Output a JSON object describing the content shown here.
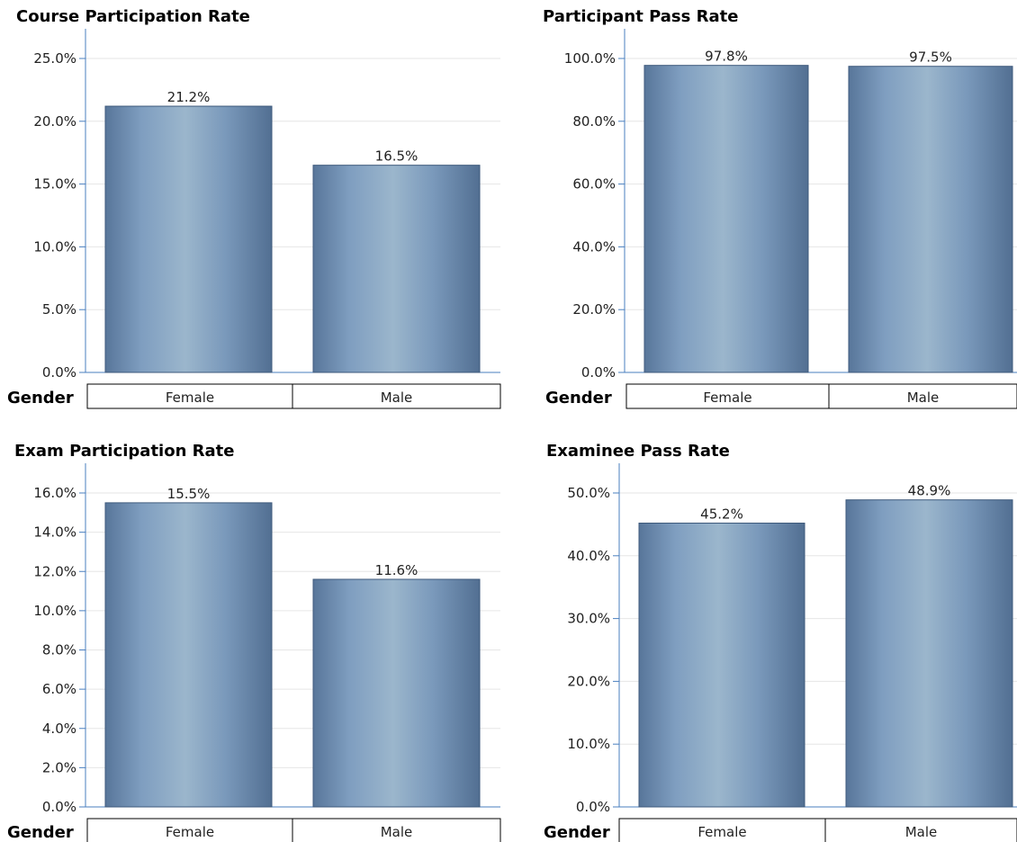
{
  "chart_data": [
    {
      "type": "bar",
      "title": "Course Participation Rate",
      "group_label": "Gender",
      "categories": [
        "Female",
        "Male"
      ],
      "values": [
        21.2,
        16.5
      ],
      "value_labels": [
        "21.2%",
        "16.5%"
      ],
      "ylim": [
        0,
        25
      ],
      "yticks": [
        0,
        5,
        10,
        15,
        20,
        25
      ],
      "ytick_labels": [
        "0.0%",
        "5.0%",
        "10.0%",
        "15.0%",
        "20.0%",
        "25.0%"
      ],
      "grid": true,
      "bar_color": "#7a9bbd",
      "axis_color": "#4a7fbf"
    },
    {
      "type": "bar",
      "title": "Participant Pass Rate",
      "group_label": "Gender",
      "categories": [
        "Female",
        "Male"
      ],
      "values": [
        97.8,
        97.5
      ],
      "value_labels": [
        "97.8%",
        "97.5%"
      ],
      "ylim": [
        0,
        100
      ],
      "yticks": [
        0,
        20,
        40,
        60,
        80,
        100
      ],
      "ytick_labels": [
        "0.0%",
        "20.0%",
        "40.0%",
        "60.0%",
        "80.0%",
        "100.0%"
      ],
      "grid": true,
      "bar_color": "#7a9bbd",
      "axis_color": "#4a7fbf"
    },
    {
      "type": "bar",
      "title": "Exam Participation Rate",
      "group_label": "Gender",
      "categories": [
        "Female",
        "Male"
      ],
      "values": [
        15.5,
        11.6
      ],
      "value_labels": [
        "15.5%",
        "11.6%"
      ],
      "ylim": [
        0,
        16
      ],
      "yticks": [
        0,
        2,
        4,
        6,
        8,
        10,
        12,
        14,
        16
      ],
      "ytick_labels": [
        "0.0%",
        "2.0%",
        "4.0%",
        "6.0%",
        "8.0%",
        "10.0%",
        "12.0%",
        "14.0%",
        "16.0%"
      ],
      "grid": true,
      "bar_color": "#7a9bbd",
      "axis_color": "#4a7fbf"
    },
    {
      "type": "bar",
      "title": "Examinee Pass Rate",
      "group_label": "Gender",
      "categories": [
        "Female",
        "Male"
      ],
      "values": [
        45.2,
        48.9
      ],
      "value_labels": [
        "45.2%",
        "48.9%"
      ],
      "ylim": [
        0,
        50
      ],
      "yticks": [
        0,
        10,
        20,
        30,
        40,
        50
      ],
      "ytick_labels": [
        "0.0%",
        "10.0%",
        "20.0%",
        "30.0%",
        "40.0%",
        "50.0%"
      ],
      "grid": true,
      "bar_color": "#7a9bbd",
      "axis_color": "#4a7fbf"
    }
  ]
}
